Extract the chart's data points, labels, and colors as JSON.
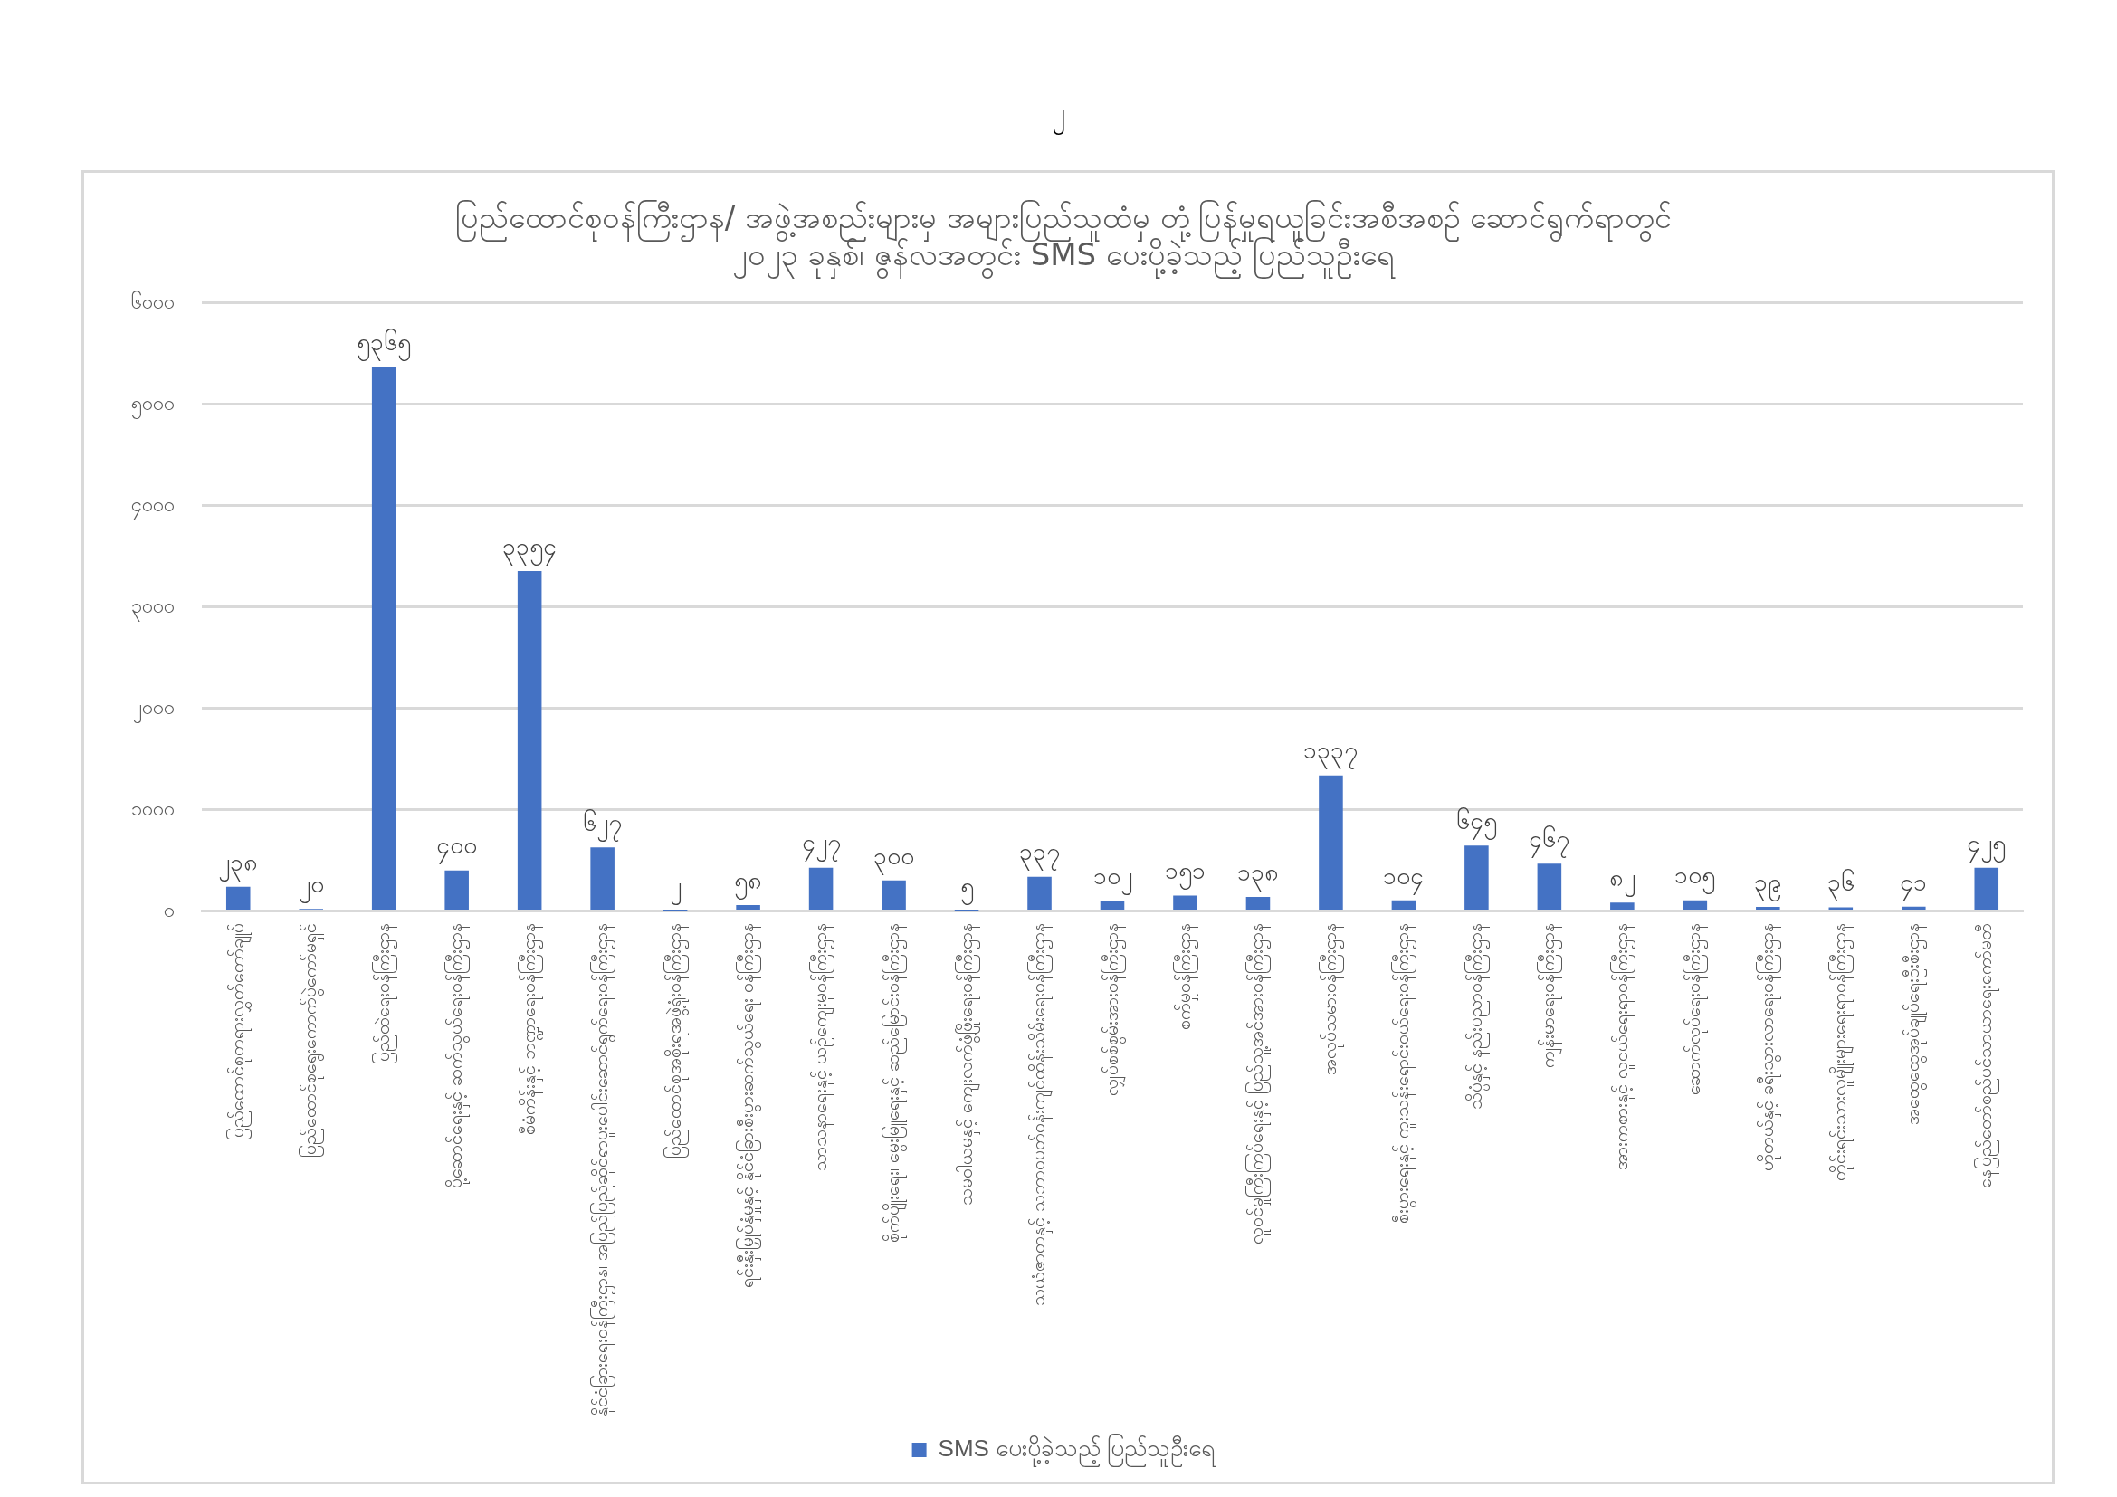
{
  "chart_data": {
    "type": "bar",
    "title": "ပြည်ထောင်စုဝန်ကြီးဌာန/ အဖွဲ့အစည်းများမှ အများပြည်သူထံမှ တုံ့ပြန်မှုရယူခြင်းအစီအစဉ် ဆောင်ရွက်ရာတွင်\n၂၀၂၃ ခုနှစ်၊ ဇွန်လအတွင်း SMS ပေးပို့ခဲ့သည့် ပြည်သူဦးရေ",
    "annotations": [
      "၂"
    ],
    "categories": [
      "ပြည်ထောင်စုတရားလွှတ်တော်ချုပ်",
      "ပြည်ထောင်စုရွေးကောက်ပွဲကော်မရှင်",
      "ပြည်ထဲရေးဝန်ကြီးဌာန",
      "ပို့ဆောင်ရေးနှင့် ဆက်သွယ်ရေးဝန်ကြီးဌာန",
      "စီမံကိန်းနှင့် ဘဏ္ဍာရေးဝန်ကြီးဌာန",
      "နိုင်ငံခြားရေးဝန်ကြီးဌာန၊ အပြည်ပြည်ဆိုင်ရာပူးပေါင်းဆောင်ရွက်ရေးဝန်ကြီးဌာန",
      "ပြည်ထောင်စုအစိုးရအဖွဲ့ရုံးဝန်ကြီးဌာန",
      "ရင်းနှီးမြှုပ်နှံမှုနှင့် နိုင်ငံခြားစီးပွားဆက်သွယ်ရေး ဝန်ကြီးဌာန",
      "သာသနာရေးနှင့် ယဉ်ကျေးမှုဝန်ကြီးဌာန",
      "စိုက်ပျိုးရေး၊ မွေးမြူရေးနှင့် ဆည်မြောင်းဝန်ကြီးဌာန",
      "သမဝါယမနှင့် ကျေးလက်ဖွံ့ဖြိုးရေးဝန်ကြီးဌာန",
      "သယံဇာတနှင့် သဘာဝပတ်ဝန်းကျင်ထိန်းသိမ်းရေးဝန်ကြီးဌာန",
      "လျှပ်စစ်စွမ်းအားဝန်ကြီးဌာန",
      "စက်မှုဝန်ကြီးဌာန",
      "လူဝင်မှုကြီးကြပ်ရေးနှင့် ပြည်သူ့အင်အားဝန်ကြီးဌာန",
      "အလုပ်သမားဝန်ကြီးဌာန",
      "စီးပွားရေးနှင့် ကူးသန်းရောင်းဝယ်ရေးဝန်ကြီးဌာန",
      "သိပ္ပံနှင့် နည်းပညာဝန်ကြီးဌာန",
      "ကျန်းမာရေးဝန်ကြီးဌာန",
      "အားကစားနှင့် လူငယ်ရေးရာဝန်ကြီးဌာန",
      "ဆောက်လုပ်ရေးဝန်ကြီးဌာန",
      "ဟိုတယ်နှင့် ခရီးသွားလာရေးဝန်ကြီးဌာန",
      "တိုင်းရင်းသားလူမျိုးများရေးရာဝန်ကြီးဌာန",
      "အထွေထွေအုပ်ချုပ်ရေးဦးစီးဌာန",
      "နေပြည်တော်စည်ပင်သာယာရေးကော်မတီ"
    ],
    "series": [
      {
        "name": "SMS ပေးပို့ခဲ့သည့် ပြည်သူဦးရေ",
        "color": "#4472c4",
        "values": [
          238,
          20,
          5365,
          400,
          3354,
          627,
          2,
          58,
          427,
          300,
          5,
          337,
          102,
          151,
          138,
          1337,
          104,
          645,
          467,
          82,
          105,
          39,
          36,
          41,
          425
        ],
        "value_labels": [
          "၂၃၈",
          "၂၀",
          "၅၃၆၅",
          "၄၀၀",
          "၃၃၅၄",
          "၆၂၇",
          "၂",
          "၅၈",
          "၄၂၇",
          "၃၀၀",
          "၅",
          "၃၃၇",
          "၁၀၂",
          "၁၅၁",
          "၁၃၈",
          "၁၃၃၇",
          "၁၀၄",
          "၆၄၅",
          "၄၆၇",
          "၈၂",
          "၁၀၅",
          "၃၉",
          "၃၆",
          "၄၁",
          "၄၂၅"
        ]
      }
    ],
    "ylim": [
      0,
      6000
    ],
    "yticks": [
      {
        "value": 0,
        "label": "၀"
      },
      {
        "value": 1000,
        "label": "၁၀၀၀"
      },
      {
        "value": 2000,
        "label": "၂၀၀၀"
      },
      {
        "value": 3000,
        "label": "၃၀၀၀"
      },
      {
        "value": 4000,
        "label": "၄၀၀၀"
      },
      {
        "value": 5000,
        "label": "၅၀၀၀"
      },
      {
        "value": 6000,
        "label": "၆၀၀၀"
      }
    ],
    "grid": "y",
    "legend": "bottom"
  }
}
